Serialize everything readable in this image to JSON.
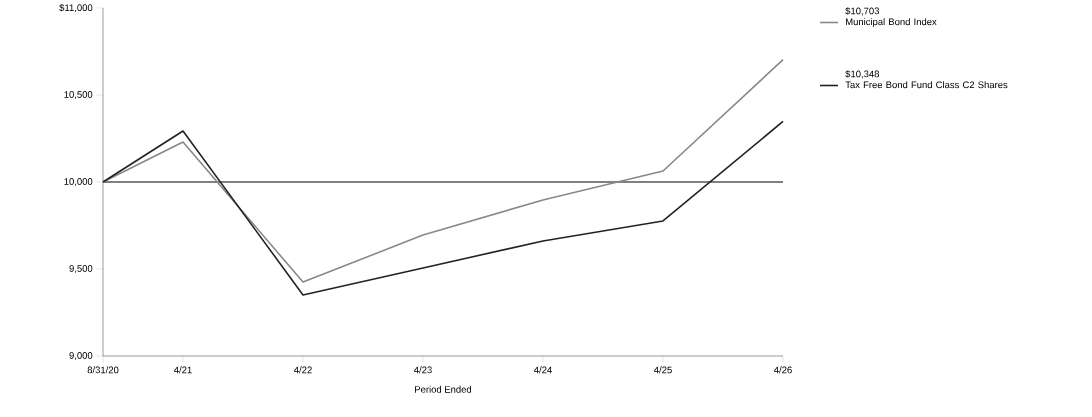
{
  "chart_data": {
    "type": "line",
    "xlabel": "Period Ended",
    "x": [
      "2020-08",
      "2021-04",
      "2022-04",
      "2023-04",
      "2024-04",
      "2025-04",
      "2026-04"
    ],
    "series": [
      {
        "name": "Municipal Bond Index",
        "color": "#888888",
        "values": [
          10000,
          10230,
          9425,
          9695,
          9897,
          10063,
          10703
        ]
      },
      {
        "name": "Tax Free Bond Fund Class C2 Shares",
        "color": "#222222",
        "values": [
          10000,
          10293,
          9351,
          9506,
          9661,
          9776,
          10348
        ]
      }
    ],
    "annotations": [
      "$10,703",
      "$10,348"
    ],
    "xlim": [
      "2020-08",
      "2026-04"
    ],
    "xticks": [
      {
        "value": "2020-08",
        "label": "8/31/20"
      },
      {
        "value": "2021-04",
        "label": "4/21"
      },
      {
        "value": "2022-04",
        "label": "4/22"
      },
      {
        "value": "2023-04",
        "label": "4/23"
      },
      {
        "value": "2024-04",
        "label": "4/24"
      },
      {
        "value": "2025-04",
        "label": "4/25"
      },
      {
        "value": "2026-04",
        "label": "4/26"
      }
    ],
    "ylim": [
      9000,
      11000
    ],
    "yticks": [
      {
        "value": 9000,
        "label": "9,000"
      },
      {
        "value": 9500,
        "label": "9,500"
      },
      {
        "value": 10000,
        "label": "10,000"
      },
      {
        "value": 10500,
        "label": "10,500"
      },
      {
        "value": 11000,
        "label": "$11,000"
      }
    ],
    "ref_lines": [
      {
        "axis": "y",
        "value": 10000,
        "color": "#000000"
      }
    ],
    "legend": "top right",
    "grid": false,
    "marker": "none",
    "line_style": "solid"
  }
}
